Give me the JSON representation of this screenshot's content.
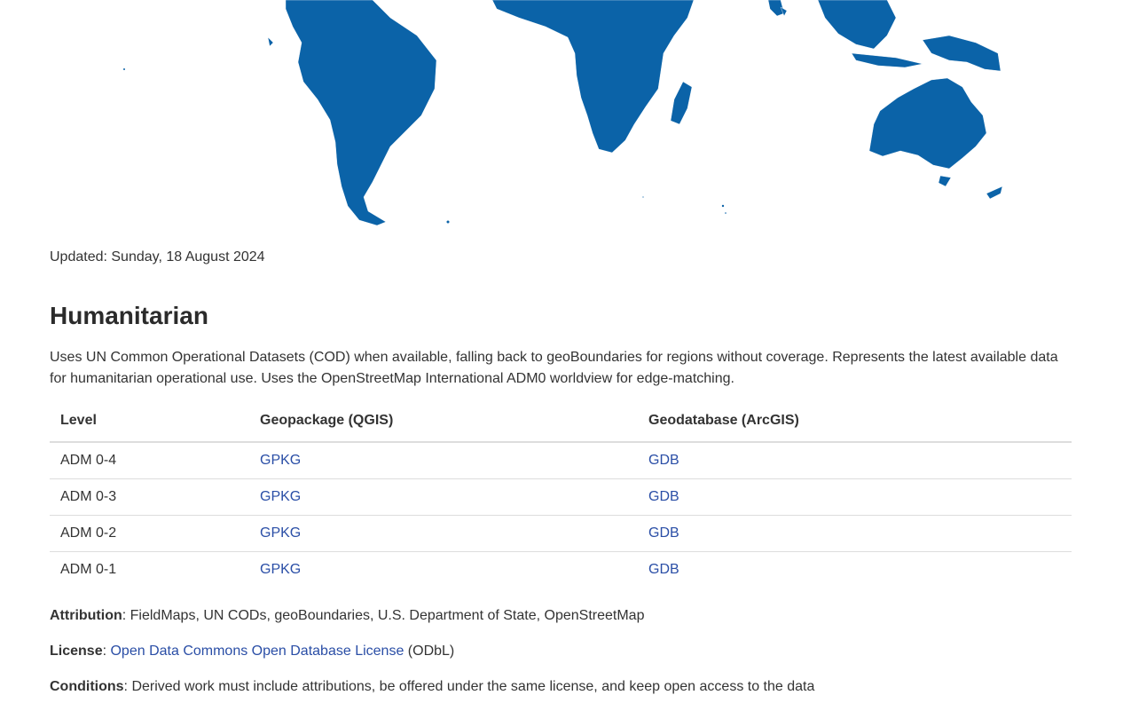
{
  "map": {
    "fill_color": "#0b63a8",
    "description_icon": "world-admin-boundaries-map"
  },
  "updated": "Updated: Sunday, 18 August 2024",
  "section": {
    "title": "Humanitarian",
    "description": "Uses UN Common Operational Datasets (COD) when available, falling back to geoBoundaries for regions without coverage. Represents the latest available data for humanitarian operational use. Uses the OpenStreetMap International ADM0 worldview for edge-matching."
  },
  "table": {
    "headers": [
      "Level",
      "Geopackage (QGIS)",
      "Geodatabase (ArcGIS)"
    ],
    "rows": [
      {
        "level": "ADM 0-4",
        "gpkg": "GPKG",
        "gdb": "GDB"
      },
      {
        "level": "ADM 0-3",
        "gpkg": "GPKG",
        "gdb": "GDB"
      },
      {
        "level": "ADM 0-2",
        "gpkg": "GPKG",
        "gdb": "GDB"
      },
      {
        "level": "ADM 0-1",
        "gpkg": "GPKG",
        "gdb": "GDB"
      }
    ]
  },
  "attribution": {
    "label": "Attribution",
    "text": ": FieldMaps, UN CODs, geoBoundaries, U.S. Department of State, OpenStreetMap"
  },
  "license": {
    "label": "License",
    "sep": ": ",
    "link_text": "Open Data Commons Open Database License",
    "suffix": " (ODbL)"
  },
  "conditions": {
    "label": "Conditions",
    "text": ": Derived work must include attributions, be offered under the same license, and keep open access to the data"
  }
}
